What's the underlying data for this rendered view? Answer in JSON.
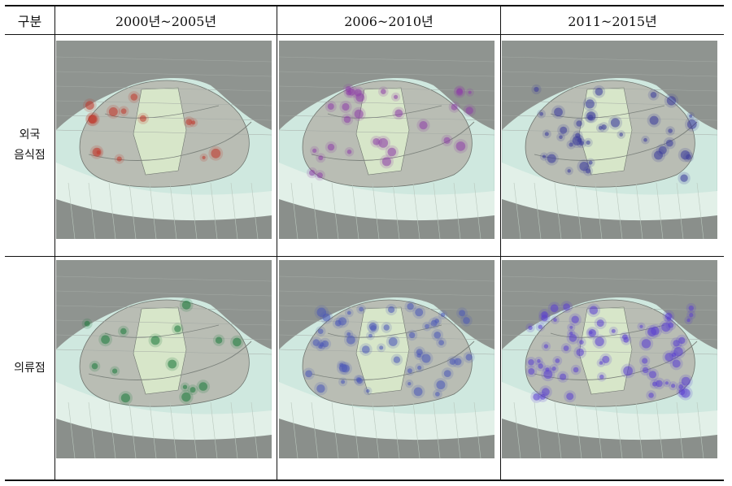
{
  "table": {
    "header": {
      "category": "구분",
      "periods": [
        "2000년~2005년",
        "2006~2010년",
        "2011~2015년"
      ]
    },
    "rows": [
      {
        "label_line1": "외국",
        "label_line2": "음식점"
      },
      {
        "label": "의류점"
      }
    ]
  },
  "colors": {
    "restaurant_2000_2005": "#c0392b",
    "restaurant_2006_2010": "#8e3fa8",
    "restaurant_2011_2015": "#3b3b9a",
    "clothing_2000_2005": "#1e7a3c",
    "clothing_2006_2010": "#4b58b8",
    "clothing_2011_2015": "#5b3fd0"
  }
}
